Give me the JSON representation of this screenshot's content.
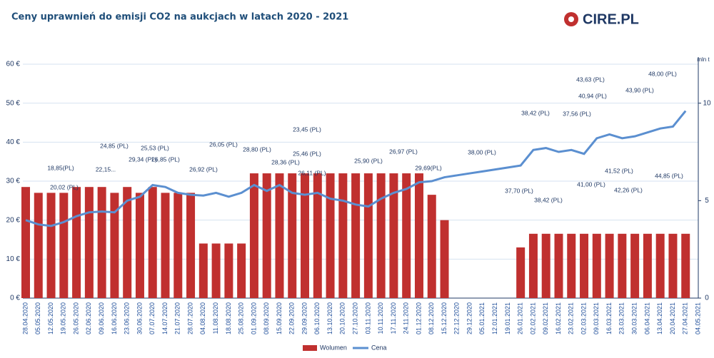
{
  "chart_data": {
    "type": "bar_line",
    "title": "Ceny uprawnień do emisji CO2 na aukcjach w latach 2020 - 2021",
    "logo": "CIRE.PL",
    "y2_label": "mln t",
    "categories": [
      "28.04.2020",
      "05.05.2020",
      "12.05.2020",
      "19.05.2020",
      "26.05.2020",
      "02.06.2020",
      "09.06.2020",
      "16.06.2020",
      "23.06.2020",
      "30.06.2020",
      "07.07.2020",
      "14.07.2020",
      "21.07.2020",
      "28.07.2020",
      "04.08.2020",
      "11.08.2020",
      "18.08.2020",
      "25.08.2020",
      "01.09.2020",
      "08.09.2020",
      "15.09.2020",
      "22.09.2020",
      "29.09.2020",
      "06.10.2020",
      "13.10.2020",
      "20.10.2020",
      "27.10.2020",
      "03.11.2020",
      "10.11.2020",
      "17.11.2020",
      "24.11.2020",
      "01.12.2020",
      "08.12.2020",
      "15.12.2020",
      "22.12.2020",
      "29.12.2020",
      "05.01.2021",
      "12.01.2021",
      "19.01.2021",
      "26.01.2021",
      "02.02.2021",
      "09.02.2021",
      "16.02.2021",
      "23.02.2021",
      "02.03.2021",
      "09.03.2021",
      "16.03.2021",
      "23.03.2021",
      "30.03.2021",
      "06.04.2021",
      "13.04.2021",
      "20.04.2021",
      "27.04.2021",
      "04.05.2021"
    ],
    "series": [
      {
        "name": "Wolumen",
        "color": "#c0302f",
        "axis": "y2",
        "values": [
          5.7,
          5.4,
          5.4,
          5.4,
          5.7,
          5.7,
          5.7,
          5.4,
          5.7,
          5.4,
          5.7,
          5.4,
          5.4,
          5.4,
          2.8,
          2.8,
          2.8,
          2.8,
          6.4,
          6.4,
          6.4,
          6.4,
          6.4,
          6.4,
          6.4,
          6.4,
          6.4,
          6.4,
          6.4,
          6.4,
          6.4,
          6.4,
          5.3,
          4.0,
          null,
          null,
          null,
          null,
          null,
          2.6,
          3.3,
          3.3,
          3.3,
          3.3,
          3.3,
          3.3,
          3.3,
          3.3,
          3.3,
          3.3,
          3.3,
          3.3,
          3.3,
          null
        ]
      },
      {
        "name": "Cena",
        "color": "#5b8fd0",
        "values": [
          20,
          18.9,
          18.5,
          19.5,
          21,
          22,
          22.2,
          22,
          25,
          26,
          29,
          28.5,
          27,
          26.5,
          26.3,
          27,
          26,
          27,
          29,
          27.5,
          29,
          27,
          26.5,
          27,
          25.5,
          25,
          24,
          23.5,
          25.5,
          27,
          28,
          29.7,
          30,
          31,
          31.5,
          32,
          32.5,
          33,
          33.5,
          34,
          38,
          38.5,
          37.5,
          38,
          37,
          41,
          42,
          41,
          41.5,
          42.5,
          43.5,
          44,
          48,
          null
        ]
      }
    ],
    "ylim": [
      0,
      60
    ],
    "yticks": [
      {
        "value": 0,
        "label": "0 €"
      },
      {
        "value": 10,
        "label": "10 €"
      },
      {
        "value": 20,
        "label": "20 €"
      },
      {
        "value": 30,
        "label": "30 €"
      },
      {
        "value": 40,
        "label": "40 €"
      },
      {
        "value": 50,
        "label": "50 €"
      },
      {
        "value": 60,
        "label": "60 €"
      }
    ],
    "y2lim": [
      0,
      12
    ],
    "y2ticks": [
      0,
      5,
      10
    ],
    "grid": true,
    "annotations": [
      "18,85(PL)",
      "20,02 (PL)",
      "22,15...",
      "24,85 (PL)",
      "29,34 (PL)",
      "26,85 (PL)",
      "25,53 (PL)",
      "26,92 (PL)",
      "26,05 (PL)",
      "28,80 (PL)",
      "28,36 (PL)",
      "25,46 (PL)",
      "26,11 (PL)",
      "23,45 (PL)",
      "25,90 (PL)",
      "26,97 (PL)",
      "29,69(PL)",
      "38,00 (PL)",
      "37,70 (PL)",
      "38,42 (PL)",
      "38,42 (PL)",
      "37,56 (PL)",
      "43,63 (PL)",
      "40,94 (PL)",
      "41,00 (PL)",
      "41,52 (PL)",
      "42,26 (PL)",
      "43,90 (PL)",
      "44,85 (PL)",
      "48,00 (PL)"
    ]
  }
}
